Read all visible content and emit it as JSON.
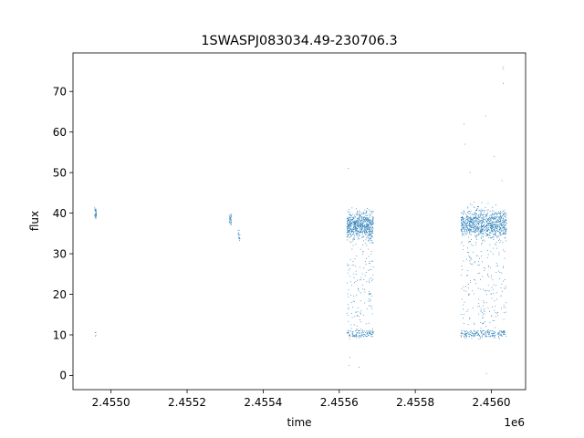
{
  "chart_data": {
    "type": "scatter",
    "title": "1SWASPJ083034.49-230706.3",
    "xlabel": "time",
    "ylabel": "flux",
    "x_offset_label": "1e6",
    "xlim": [
      2.4549,
      2.45609
    ],
    "ylim": [
      -3.5,
      79.5
    ],
    "x_ticks": [
      2.455,
      2.4552,
      2.4554,
      2.4556,
      2.4558,
      2.456
    ],
    "x_tick_labels": [
      "2.4550",
      "2.4552",
      "2.4554",
      "2.4556",
      "2.4558",
      "2.4560"
    ],
    "y_ticks": [
      0,
      10,
      20,
      30,
      40,
      50,
      60,
      70
    ],
    "y_tick_labels": [
      "0",
      "10",
      "20",
      "30",
      "40",
      "50",
      "60",
      "70"
    ],
    "grid": false,
    "legend": "none",
    "marker_color": "#1f77b4",
    "clusters": [
      {
        "x_range": [
          2.454957,
          2.454962
        ],
        "flux_center": 39.8,
        "flux_spread": 1.2,
        "low_range": [
          9,
          13
        ],
        "n": 40,
        "low_frac": 0.1
      },
      {
        "x_range": [
          2.455311,
          2.455317
        ],
        "flux_center": 38.5,
        "flux_spread": 1.0,
        "low_range": null,
        "n": 30,
        "low_frac": 0
      },
      {
        "x_range": [
          2.455334,
          2.455339
        ],
        "flux_center": 34.5,
        "flux_spread": 1.2,
        "low_range": null,
        "n": 15,
        "low_frac": 0
      },
      {
        "x_range": [
          2.45562,
          2.45569
        ],
        "flux_center": 37.0,
        "flux_spread": 2.8,
        "low_range": [
          9,
          37
        ],
        "n": 900,
        "low_frac": 0.3
      },
      {
        "x_range": [
          2.45592,
          2.45604
        ],
        "flux_center": 37.5,
        "flux_spread": 3.0,
        "low_range": [
          9,
          37
        ],
        "n": 1300,
        "low_frac": 0.33
      }
    ],
    "outliers": [
      {
        "x": 2.455624,
        "y": 51
      },
      {
        "x": 2.455626,
        "y": 2.5
      },
      {
        "x": 2.455628,
        "y": 4.5
      },
      {
        "x": 2.455652,
        "y": 2.0
      },
      {
        "x": 2.455928,
        "y": 62
      },
      {
        "x": 2.45593,
        "y": 57
      },
      {
        "x": 2.455985,
        "y": 64
      },
      {
        "x": 2.455987,
        "y": 0.5
      },
      {
        "x": 2.456008,
        "y": 54
      },
      {
        "x": 2.45603,
        "y": 76
      },
      {
        "x": 2.456032,
        "y": 75.5
      },
      {
        "x": 2.456031,
        "y": 72
      },
      {
        "x": 2.456028,
        "y": 48
      },
      {
        "x": 2.455944,
        "y": 50
      }
    ]
  }
}
